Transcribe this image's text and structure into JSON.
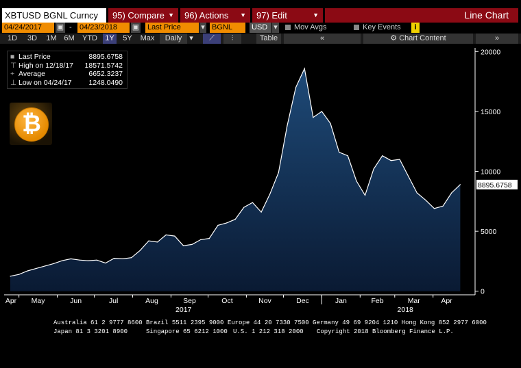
{
  "toolbar": {
    "ticker": "XBTUSD BGNL Curncy",
    "compare": "95) Compare",
    "actions": "96) Actions",
    "edit": "97) Edit",
    "title": "Line Chart"
  },
  "controls": {
    "start_date": "04/24/2017",
    "end_date": "04/23/2018",
    "field": "Last Price",
    "source": "BGNL",
    "currency": "USD",
    "mov_avgs": "Mov Avgs",
    "key_events": "Key Events"
  },
  "periods": [
    "1D",
    "3D",
    "1M",
    "6M",
    "YTD",
    "1Y",
    "5Y",
    "Max"
  ],
  "active_period": "1Y",
  "frequency": "Daily",
  "table_label": "Table",
  "chart_content_label": "Chart Content",
  "legend": [
    {
      "label": "Last Price",
      "value": "8895.6758"
    },
    {
      "label": "High on 12/18/17",
      "value": "18571.5742"
    },
    {
      "label": "Average",
      "value": "6652.3237"
    },
    {
      "label": "Low on 04/24/17",
      "value": "1248.0490"
    }
  ],
  "last_price_tag": "8895.6758",
  "footer": {
    "line1": "Australia 61 2 9777 8600 Brazil 5511 2395 9000 Europe 44 20 7330 7500 Germany 49 69 9204 1210 Hong Kong 852 2977 6000",
    "line2a": "Japan 81 3 3201 8900",
    "line2b": "Singapore 65 6212 1000",
    "line2c": "U.S. 1 212 318 2000",
    "line2d": "Copyright 2018 Bloomberg Finance L.P."
  },
  "colors": {
    "line": "#ffffff",
    "fill_top": "#1e4a78",
    "fill_bottom": "#0a1a33",
    "panel": "#8b0a14",
    "accent": "#f08c00"
  },
  "chart_data": {
    "type": "area",
    "x": [
      "2017-04-24",
      "2017-05-01",
      "2017-05-08",
      "2017-05-15",
      "2017-05-22",
      "2017-05-29",
      "2017-06-05",
      "2017-06-12",
      "2017-06-19",
      "2017-06-26",
      "2017-07-03",
      "2017-07-10",
      "2017-07-17",
      "2017-07-24",
      "2017-07-31",
      "2017-08-07",
      "2017-08-14",
      "2017-08-21",
      "2017-08-28",
      "2017-09-04",
      "2017-09-11",
      "2017-09-18",
      "2017-09-25",
      "2017-10-02",
      "2017-10-09",
      "2017-10-16",
      "2017-10-23",
      "2017-10-30",
      "2017-11-06",
      "2017-11-13",
      "2017-11-20",
      "2017-11-27",
      "2017-12-04",
      "2017-12-11",
      "2017-12-18",
      "2017-12-25",
      "2018-01-01",
      "2018-01-08",
      "2018-01-15",
      "2018-01-22",
      "2018-01-29",
      "2018-02-05",
      "2018-02-12",
      "2018-02-19",
      "2018-02-26",
      "2018-03-05",
      "2018-03-12",
      "2018-03-19",
      "2018-03-26",
      "2018-04-02",
      "2018-04-09",
      "2018-04-16",
      "2018-04-23"
    ],
    "values": [
      1250,
      1400,
      1700,
      1900,
      2100,
      2300,
      2550,
      2700,
      2600,
      2550,
      2600,
      2350,
      2750,
      2700,
      2800,
      3400,
      4200,
      4100,
      4700,
      4600,
      3800,
      3900,
      4300,
      4400,
      5500,
      5700,
      6000,
      7000,
      7400,
      6600,
      8100,
      9900,
      13800,
      17000,
      18570,
      14500,
      15000,
      14000,
      11600,
      11300,
      9200,
      8000,
      10200,
      11300,
      10900,
      11000,
      9600,
      8200,
      7600,
      6900,
      7100,
      8200,
      8896
    ],
    "xlabels": [
      "Apr",
      "May",
      "Jun",
      "Jul",
      "Aug",
      "Sep",
      "Oct",
      "Nov",
      "Dec",
      "Jan",
      "Feb",
      "Mar",
      "Apr"
    ],
    "year_labels": [
      "2017",
      "2018"
    ],
    "yticks": [
      0,
      5000,
      10000,
      15000,
      20000
    ],
    "ylim": [
      -300,
      20300
    ],
    "grid": false
  }
}
